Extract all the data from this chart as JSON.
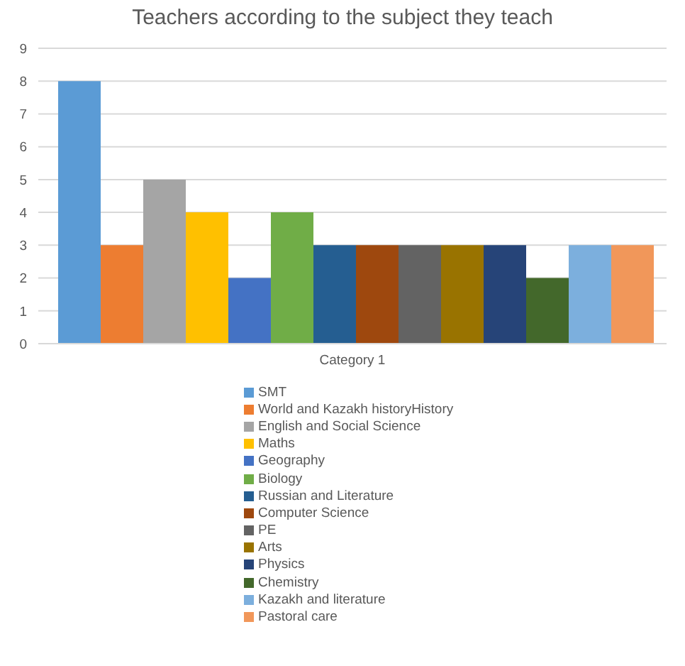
{
  "chart_data": {
    "type": "bar",
    "title": "Teachers according to the subject they teach",
    "categories": [
      "Category 1"
    ],
    "series": [
      {
        "name": "SMT",
        "color": "#5b9bd5",
        "values": [
          8
        ]
      },
      {
        "name": "World and Kazakh historyHistory",
        "color": "#ed7d31",
        "values": [
          3
        ]
      },
      {
        "name": "English and Social Science",
        "color": "#a5a5a5",
        "values": [
          5
        ]
      },
      {
        "name": "Maths",
        "color": "#ffc000",
        "values": [
          4
        ]
      },
      {
        "name": "Geography",
        "color": "#4472c4",
        "values": [
          2
        ]
      },
      {
        "name": "Biology",
        "color": "#70ad47",
        "values": [
          4
        ]
      },
      {
        "name": "Russian and Literature",
        "color": "#255e91",
        "values": [
          3
        ]
      },
      {
        "name": "Computer Science",
        "color": "#9e480e",
        "values": [
          3
        ]
      },
      {
        "name": "PE",
        "color": "#636363",
        "values": [
          3
        ]
      },
      {
        "name": "Arts",
        "color": "#997300",
        "values": [
          3
        ]
      },
      {
        "name": "Physics",
        "color": "#264478",
        "values": [
          3
        ]
      },
      {
        "name": "Chemistry",
        "color": "#43682b",
        "values": [
          2
        ]
      },
      {
        "name": "Kazakh and literature",
        "color": "#7cafdd",
        "values": [
          3
        ]
      },
      {
        "name": "Pastoral care",
        "color": "#f1975a",
        "values": [
          3
        ]
      }
    ],
    "ylim": [
      0,
      9
    ],
    "yticks": [
      0,
      1,
      2,
      3,
      4,
      5,
      6,
      7,
      8,
      9
    ],
    "grid": "y",
    "legend": "bottom"
  }
}
